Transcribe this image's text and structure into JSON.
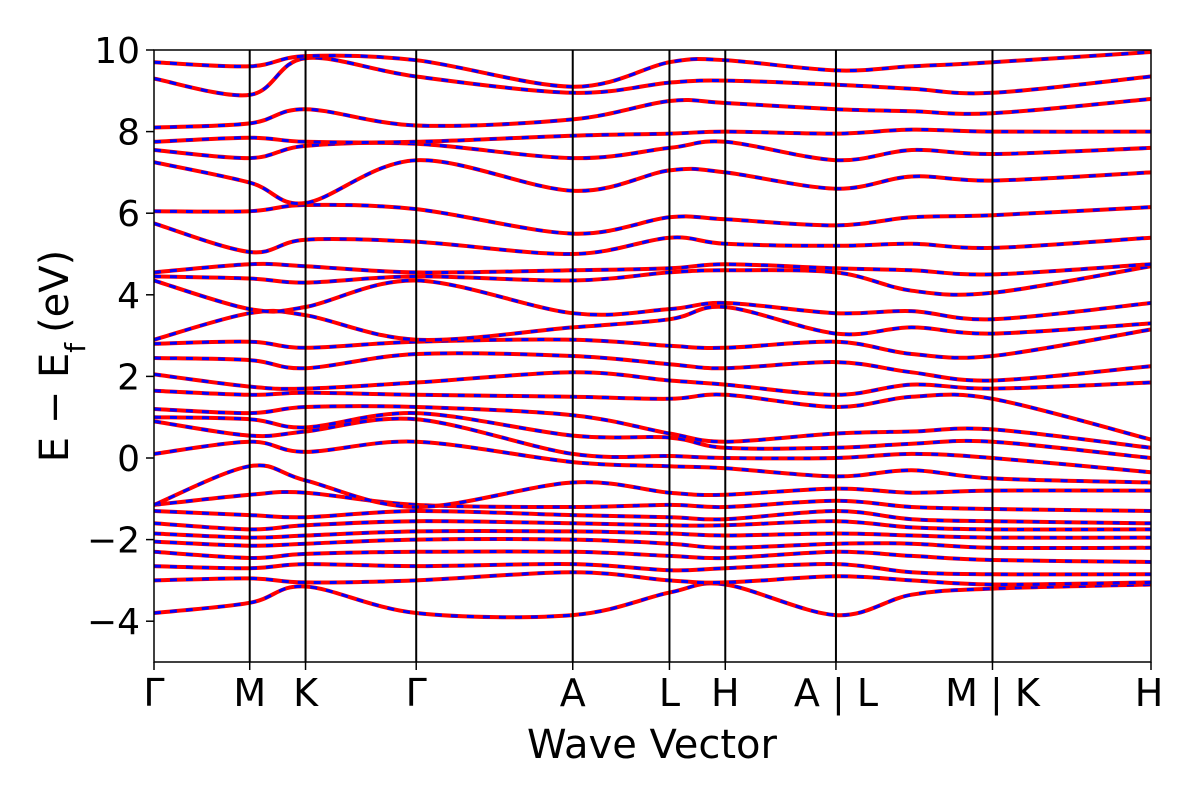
{
  "chart_data": {
    "type": "line",
    "title": "",
    "xlabel": "Wave Vector",
    "ylabel": "E − E",
    "ylabel_sub": "f",
    "ylabel_unit": "(eV)",
    "ylim": [
      -5,
      10
    ],
    "yticks": [
      {
        "value": 10,
        "label": "10"
      },
      {
        "value": 8,
        "label": "8"
      },
      {
        "value": 6,
        "label": "6"
      },
      {
        "value": 4,
        "label": "4"
      },
      {
        "value": 2,
        "label": "2"
      },
      {
        "value": 0,
        "label": "0"
      },
      {
        "value": -2,
        "label": "−2"
      },
      {
        "value": -4,
        "label": "−4"
      }
    ],
    "xlim": [
      0,
      10.0
    ],
    "kpoints": [
      {
        "x": 0.0,
        "label": "Γ"
      },
      {
        "x": 0.96,
        "label": "M"
      },
      {
        "x": 1.52,
        "label": "K"
      },
      {
        "x": 2.63,
        "label": "Γ"
      },
      {
        "x": 4.2,
        "label": "A"
      },
      {
        "x": 5.17,
        "label": "L"
      },
      {
        "x": 5.73,
        "label": "H"
      },
      {
        "x": 6.84,
        "label": "A | L"
      },
      {
        "x": 8.41,
        "label": "M | K"
      },
      {
        "x": 10.0,
        "label": "H"
      }
    ],
    "grid": false,
    "legend": "none",
    "series_colors": {
      "spin_up": "#ff0000",
      "spin_down": "#0000ff"
    },
    "band_energies": [
      [
        -3.8,
        -3.55,
        -3.15,
        -3.8,
        -3.85,
        -3.3,
        -3.1,
        -3.85,
        -3.35,
        -3.2,
        -3.1
      ],
      [
        -3.0,
        -2.95,
        -3.05,
        -3.0,
        -2.8,
        -3.0,
        -3.05,
        -2.9,
        -3.0,
        -3.1,
        -3.05
      ],
      [
        -2.65,
        -2.7,
        -2.6,
        -2.65,
        -2.6,
        -2.75,
        -2.7,
        -2.6,
        -2.8,
        -2.85,
        -2.85
      ],
      [
        -2.3,
        -2.45,
        -2.35,
        -2.3,
        -2.3,
        -2.4,
        -2.45,
        -2.3,
        -2.4,
        -2.5,
        -2.55
      ],
      [
        -2.05,
        -2.15,
        -2.1,
        -2.0,
        -2.0,
        -2.1,
        -2.2,
        -2.1,
        -2.1,
        -2.2,
        -2.2
      ],
      [
        -1.85,
        -1.95,
        -1.9,
        -1.8,
        -1.8,
        -1.85,
        -1.9,
        -1.85,
        -1.9,
        -1.95,
        -1.95
      ],
      [
        -1.6,
        -1.75,
        -1.65,
        -1.55,
        -1.6,
        -1.65,
        -1.65,
        -1.55,
        -1.7,
        -1.75,
        -1.75
      ],
      [
        -1.3,
        -1.4,
        -1.45,
        -1.3,
        -1.4,
        -1.45,
        -1.5,
        -1.3,
        -1.5,
        -1.55,
        -1.6
      ],
      [
        -1.15,
        -0.9,
        -0.85,
        -1.15,
        -1.2,
        -1.15,
        -1.2,
        -1.05,
        -1.2,
        -1.25,
        -1.3
      ],
      [
        -1.15,
        -0.2,
        -0.55,
        -1.2,
        -0.6,
        -0.85,
        -0.9,
        -0.75,
        -0.85,
        -0.8,
        -0.8
      ],
      [
        0.1,
        0.4,
        0.15,
        0.4,
        -0.1,
        -0.2,
        -0.25,
        -0.45,
        -0.3,
        -0.5,
        -0.6
      ],
      [
        0.9,
        0.55,
        0.65,
        0.95,
        0.1,
        0.05,
        0.0,
        0.0,
        0.1,
        0.0,
        -0.35
      ],
      [
        1.0,
        0.95,
        0.75,
        1.1,
        0.55,
        0.5,
        0.25,
        0.25,
        0.35,
        0.4,
        0.0
      ],
      [
        1.2,
        1.1,
        1.25,
        1.25,
        1.05,
        0.6,
        0.4,
        0.6,
        0.65,
        0.7,
        0.25
      ],
      [
        1.65,
        1.55,
        1.6,
        1.55,
        1.5,
        1.45,
        1.55,
        1.25,
        1.5,
        1.45,
        0.45
      ],
      [
        2.05,
        1.75,
        1.7,
        1.85,
        2.1,
        1.9,
        1.8,
        1.55,
        1.8,
        1.7,
        1.85
      ],
      [
        2.45,
        2.4,
        2.2,
        2.55,
        2.5,
        2.3,
        2.2,
        2.35,
        2.1,
        1.9,
        2.25
      ],
      [
        2.8,
        2.85,
        2.7,
        2.85,
        2.9,
        2.75,
        2.7,
        2.85,
        2.55,
        2.5,
        3.15
      ],
      [
        2.9,
        3.55,
        3.5,
        2.9,
        3.2,
        3.4,
        3.7,
        3.05,
        3.2,
        3.05,
        3.3
      ],
      [
        4.35,
        3.65,
        3.7,
        4.35,
        3.55,
        3.65,
        3.8,
        3.55,
        3.6,
        3.4,
        3.8
      ],
      [
        4.45,
        4.4,
        4.3,
        4.45,
        4.35,
        4.55,
        4.6,
        4.55,
        4.1,
        4.05,
        4.7
      ],
      [
        4.55,
        4.75,
        4.7,
        4.55,
        4.6,
        4.65,
        4.75,
        4.65,
        4.6,
        4.5,
        4.75
      ],
      [
        5.75,
        5.05,
        5.35,
        5.3,
        5.0,
        5.4,
        5.25,
        5.2,
        5.25,
        5.15,
        5.4
      ],
      [
        6.05,
        6.05,
        6.2,
        6.1,
        5.5,
        5.9,
        5.85,
        5.7,
        5.9,
        5.95,
        6.15
      ],
      [
        7.25,
        6.75,
        6.25,
        7.3,
        6.55,
        7.05,
        7.0,
        6.6,
        6.9,
        6.8,
        7.0
      ],
      [
        7.55,
        7.35,
        7.65,
        7.7,
        7.35,
        7.6,
        7.75,
        7.3,
        7.55,
        7.45,
        7.6
      ],
      [
        7.75,
        7.85,
        7.75,
        7.75,
        7.9,
        7.95,
        8.0,
        7.95,
        8.05,
        8.0,
        8.0
      ],
      [
        8.1,
        8.2,
        8.55,
        8.15,
        8.3,
        8.75,
        8.7,
        8.55,
        8.5,
        8.45,
        8.8
      ],
      [
        9.3,
        8.9,
        9.8,
        9.35,
        8.95,
        9.2,
        9.25,
        9.15,
        9.05,
        8.95,
        9.35
      ],
      [
        9.7,
        9.6,
        9.85,
        9.75,
        9.1,
        9.7,
        9.75,
        9.5,
        9.6,
        9.7,
        9.95
      ]
    ],
    "band_x": [
      0.0,
      0.96,
      1.52,
      2.63,
      4.2,
      5.17,
      5.73,
      6.84,
      7.6,
      8.41,
      10.0
    ]
  }
}
